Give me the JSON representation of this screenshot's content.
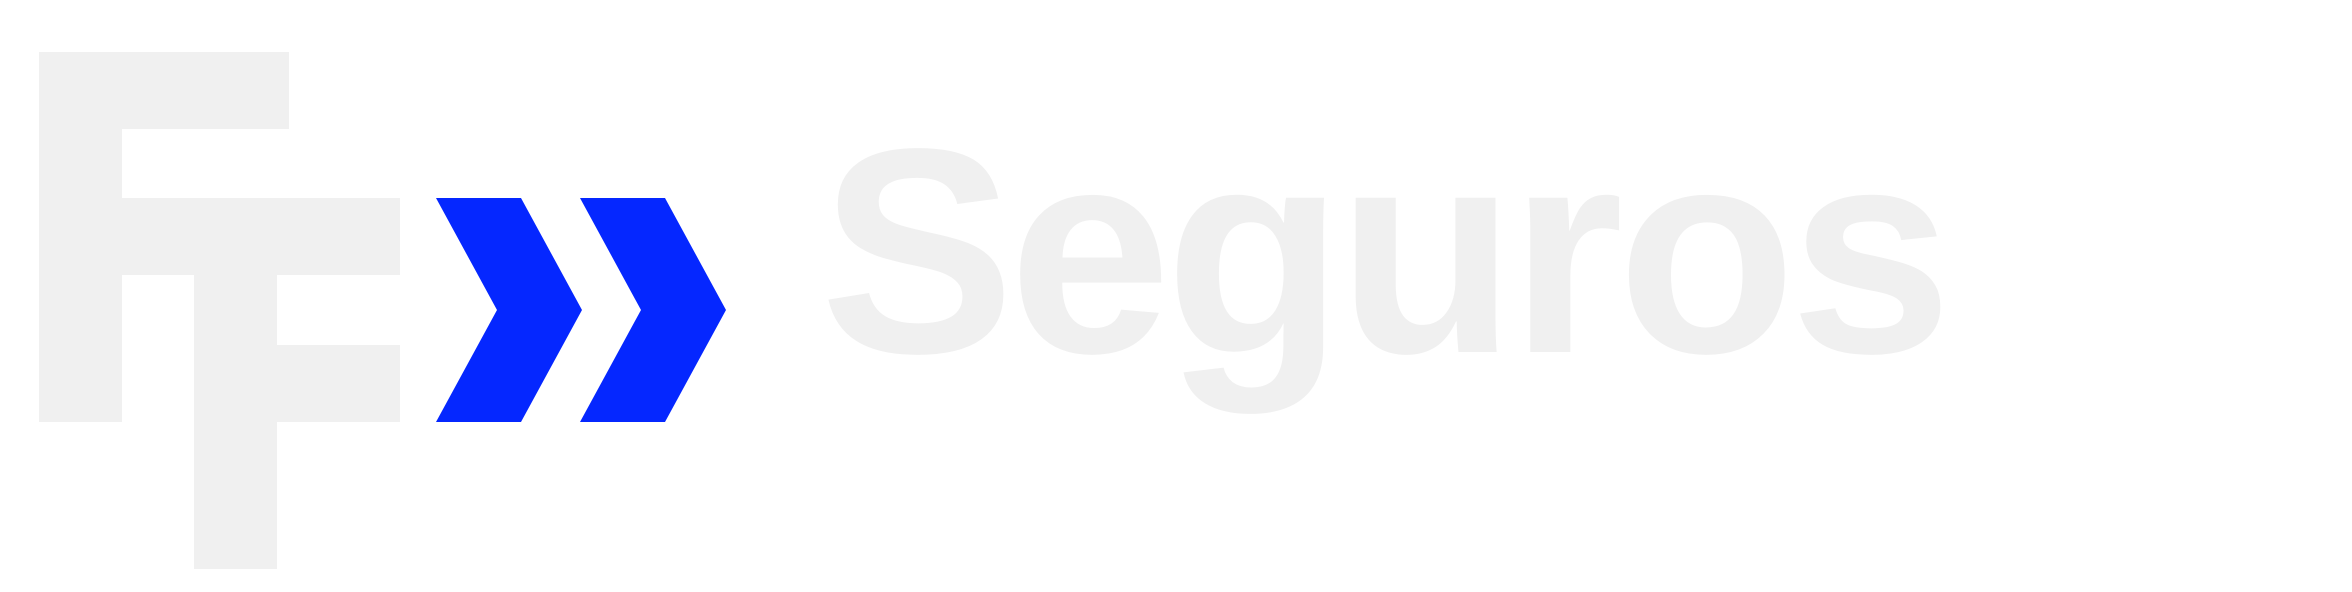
{
  "brand": {
    "name": "Seguros",
    "colors": {
      "mark": "#f0f0f0",
      "chevrons": "#0527ff",
      "background": "#ffffff"
    }
  },
  "icons": {
    "monogram": "ft-monogram-icon",
    "chevrons": "double-chevron-right-icon"
  }
}
